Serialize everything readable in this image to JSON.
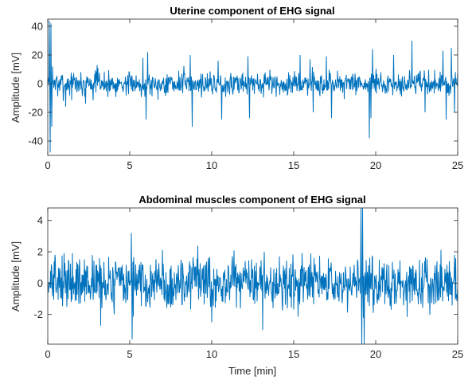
{
  "chart_data": [
    {
      "type": "line",
      "title": "Uterine component of EHG signal",
      "xlabel": "",
      "ylabel": "Amplitude [mV]",
      "xlim": [
        0,
        25
      ],
      "ylim": [
        -50,
        45
      ],
      "xticks": [
        0,
        5,
        10,
        15,
        20,
        25
      ],
      "yticks": [
        -40,
        -20,
        0,
        20,
        40
      ],
      "grid": false,
      "line_color": "#0072BD",
      "noise_amplitude": 5,
      "x": [
        0.1,
        0.15,
        0.2,
        0.25,
        0.3,
        1.1,
        2.3,
        3.0,
        5.8,
        6.0,
        6.1,
        8.7,
        8.8,
        10.4,
        10.6,
        12.2,
        12.3,
        15.4,
        16.0,
        16.2,
        17.0,
        17.3,
        19.6,
        19.7,
        19.8,
        21.1,
        22.2,
        23.0,
        24.1,
        24.3,
        24.6,
        24.8
      ],
      "y": [
        44,
        -48,
        42,
        -30,
        12,
        -16,
        -14,
        13,
        18,
        -25,
        22,
        20,
        -30,
        16,
        -25,
        19,
        -24,
        20,
        17,
        -20,
        19,
        -24,
        -38,
        -24,
        24,
        20,
        30,
        -20,
        23,
        -25,
        25,
        -20
      ]
    },
    {
      "type": "line",
      "title": "Abdominal muscles component of EHG signal",
      "xlabel": "Time [min]",
      "ylabel": "Amplitude [mV]",
      "xlim": [
        0,
        25
      ],
      "ylim": [
        -3.9,
        4.8
      ],
      "xticks": [
        0,
        5,
        10,
        15,
        20,
        25
      ],
      "yticks": [
        -2,
        0,
        2,
        4
      ],
      "grid": false,
      "line_color": "#0072BD",
      "noise_amplitude": 1.0,
      "x": [
        5.1,
        5.15,
        10.0,
        13.1,
        13.2,
        19.1,
        19.15,
        19.2,
        19.3,
        24.8
      ],
      "y": [
        3.2,
        -3.6,
        -2.5,
        -3.0,
        2.0,
        4.8,
        -3.9,
        4.8,
        -3.9,
        1.8
      ]
    }
  ]
}
